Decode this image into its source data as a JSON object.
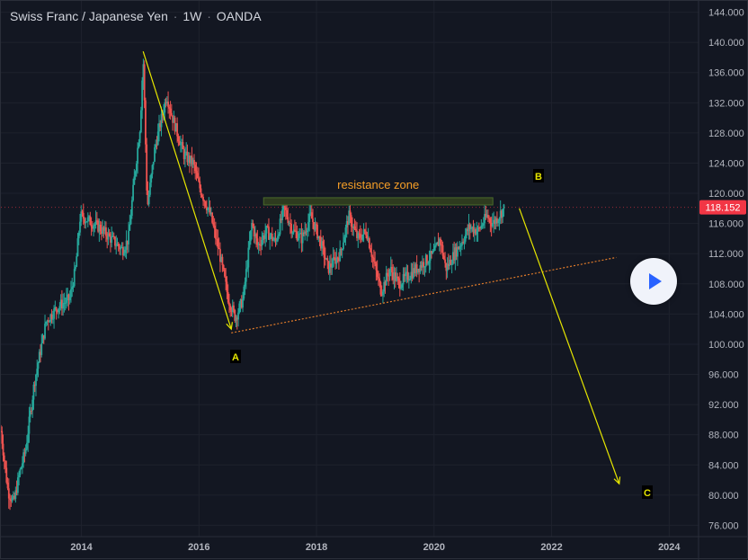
{
  "header": {
    "symbol": "Swiss Franc / Japanese Yen",
    "interval": "1W",
    "exchange": "OANDA",
    "separator": "·"
  },
  "price_badge": {
    "value": "118.152",
    "color": "#f23645"
  },
  "annotations": {
    "resistance_label": "resistance zone",
    "point_a": "A",
    "point_b": "B",
    "point_c": "C"
  },
  "colors": {
    "background": "#131722",
    "up": "#26a69a",
    "down": "#ef5350",
    "wave_line": "#e6e600",
    "trend_line": "#e07b2a",
    "resistance_fill": "#2e3b1f",
    "resistance_text": "#f59e27",
    "label_text": "#e6e600",
    "axis_text": "#b2b5be"
  },
  "play_button": {
    "icon": "play-icon"
  },
  "chart_data": {
    "type": "candlestick",
    "title": "Swiss Franc / Japanese Yen · 1W · OANDA",
    "y_ticks": [
      "76.000",
      "80.000",
      "84.000",
      "88.000",
      "92.000",
      "96.000",
      "100.000",
      "104.000",
      "108.000",
      "112.000",
      "116.000",
      "120.000",
      "124.000",
      "128.000",
      "132.000",
      "136.000",
      "140.000",
      "144.000"
    ],
    "x_ticks": [
      "2014",
      "2016",
      "2018",
      "2020",
      "2022",
      "2024"
    ],
    "ylim": [
      74.5,
      145.5
    ],
    "xlim": [
      2012.63,
      2024.5
    ],
    "grid": true,
    "last_price": 118.152,
    "price_path": [
      [
        2012.63,
        88.5
      ],
      [
        2012.75,
        80.5
      ],
      [
        2012.85,
        79.0
      ],
      [
        2012.95,
        83.0
      ],
      [
        2013.05,
        86.0
      ],
      [
        2013.2,
        95.0
      ],
      [
        2013.4,
        103.0
      ],
      [
        2013.6,
        105.0
      ],
      [
        2013.8,
        106.0
      ],
      [
        2013.9,
        110.0
      ],
      [
        2013.98,
        117.0
      ],
      [
        2014.1,
        116.5
      ],
      [
        2014.3,
        115.5
      ],
      [
        2014.5,
        114.0
      ],
      [
        2014.7,
        112.5
      ],
      [
        2014.8,
        114.0
      ],
      [
        2014.9,
        122.0
      ],
      [
        2015.0,
        129.0
      ],
      [
        2015.05,
        138.0
      ],
      [
        2015.08,
        130.0
      ],
      [
        2015.12,
        118.0
      ],
      [
        2015.25,
        126.0
      ],
      [
        2015.45,
        133.0
      ],
      [
        2015.55,
        130.0
      ],
      [
        2015.75,
        125.0
      ],
      [
        2015.9,
        124.0
      ],
      [
        2016.0,
        121.0
      ],
      [
        2016.2,
        117.0
      ],
      [
        2016.35,
        112.0
      ],
      [
        2016.5,
        106.0
      ],
      [
        2016.62,
        103.5
      ],
      [
        2016.75,
        106.0
      ],
      [
        2016.9,
        116.0
      ],
      [
        2017.0,
        113.0
      ],
      [
        2017.15,
        115.0
      ],
      [
        2017.3,
        113.5
      ],
      [
        2017.45,
        118.0
      ],
      [
        2017.6,
        115.0
      ],
      [
        2017.75,
        114.0
      ],
      [
        2017.9,
        117.0
      ],
      [
        2018.05,
        114.0
      ],
      [
        2018.2,
        110.0
      ],
      [
        2018.4,
        112.0
      ],
      [
        2018.55,
        117.0
      ],
      [
        2018.7,
        114.0
      ],
      [
        2018.85,
        115.0
      ],
      [
        2019.0,
        110.0
      ],
      [
        2019.1,
        107.0
      ],
      [
        2019.25,
        110.0
      ],
      [
        2019.4,
        108.0
      ],
      [
        2019.55,
        109.0
      ],
      [
        2019.7,
        110.0
      ],
      [
        2019.85,
        111.0
      ],
      [
        2020.0,
        112.0
      ],
      [
        2020.1,
        114.0
      ],
      [
        2020.2,
        110.0
      ],
      [
        2020.35,
        112.0
      ],
      [
        2020.5,
        114.0
      ],
      [
        2020.6,
        115.5
      ],
      [
        2020.75,
        115.0
      ],
      [
        2020.9,
        117.0
      ],
      [
        2021.0,
        116.0
      ],
      [
        2021.1,
        117.0
      ],
      [
        2021.2,
        118.152
      ]
    ],
    "wave_lines": [
      {
        "from": [
          2015.05,
          138.8
        ],
        "to": [
          2016.55,
          102.0
        ]
      },
      {
        "from": [
          2021.45,
          118.0
        ],
        "to": [
          2023.15,
          81.5
        ]
      }
    ],
    "trend_line": {
      "from": [
        2016.55,
        101.5
      ],
      "to": [
        2023.1,
        111.5
      ]
    },
    "resistance_zone": {
      "x": [
        2017.1,
        2021.0
      ],
      "y": [
        118.7,
        119.3
      ]
    }
  }
}
